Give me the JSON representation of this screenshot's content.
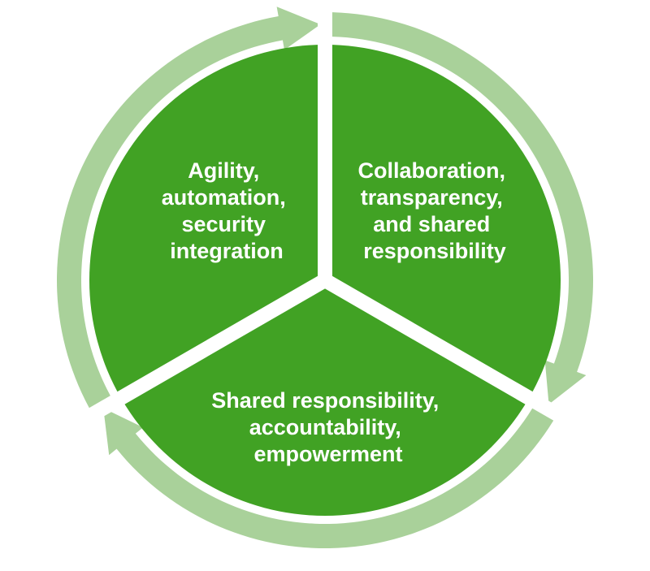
{
  "diagram": {
    "type": "cycle",
    "colors": {
      "segment": "#41A224",
      "arrow": "#A9D19A",
      "background": "#FFFFFF",
      "text": "#FFFFFF"
    },
    "segments": [
      {
        "id": "top-left",
        "lines": [
          "Agility,",
          "automation,",
          "security",
          "integration"
        ]
      },
      {
        "id": "top-right",
        "lines": [
          "Collaboration,",
          "transparency,",
          "and shared",
          "responsibility"
        ]
      },
      {
        "id": "bottom",
        "lines": [
          "Shared responsibility,",
          "accountability,",
          "empowerment"
        ]
      }
    ]
  }
}
